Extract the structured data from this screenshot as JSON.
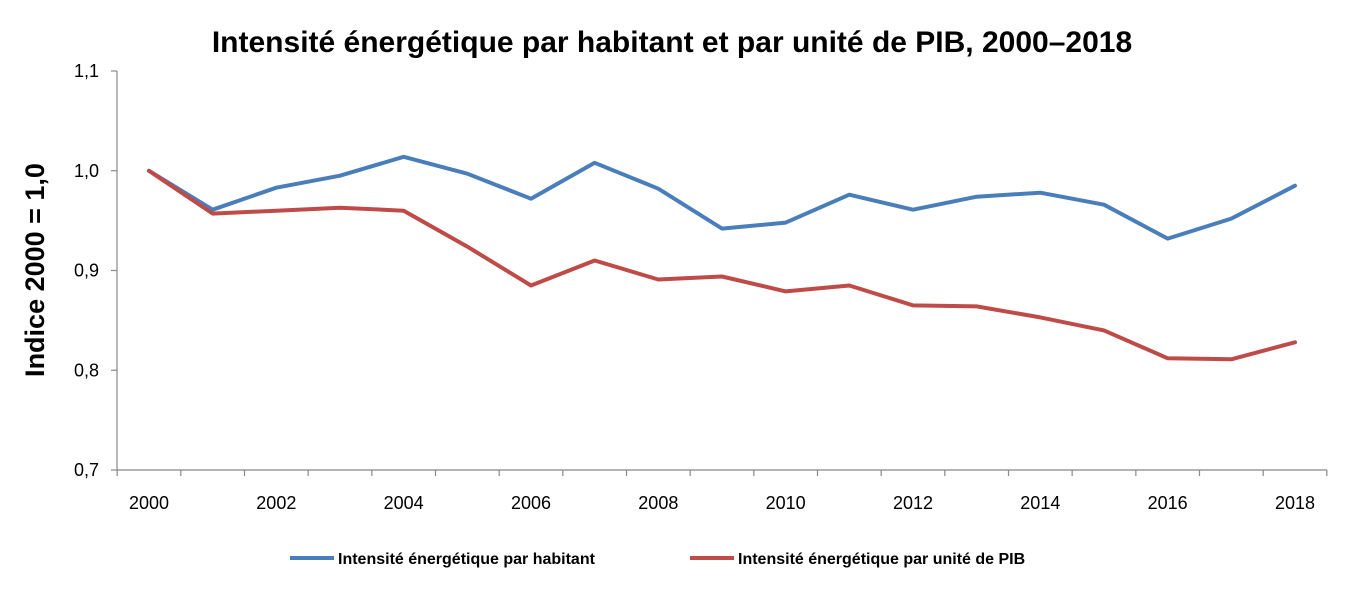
{
  "chart_data": {
    "type": "line",
    "title": "Intensité énergétique par habitant et par unité de PIB, 2000–2018",
    "ylabel": "Indice 2000 = 1,0",
    "xlabel": "",
    "x": [
      2000,
      2001,
      2002,
      2003,
      2004,
      2005,
      2006,
      2007,
      2008,
      2009,
      2010,
      2011,
      2012,
      2013,
      2014,
      2015,
      2016,
      2017,
      2018
    ],
    "x_tick_labels": [
      "2000",
      "2002",
      "2004",
      "2006",
      "2008",
      "2010",
      "2012",
      "2014",
      "2016",
      "2018"
    ],
    "x_tick_values": [
      2000,
      2002,
      2004,
      2006,
      2008,
      2010,
      2012,
      2014,
      2016,
      2018
    ],
    "ylim": [
      0.7,
      1.1
    ],
    "y_ticks": [
      0.7,
      0.8,
      0.9,
      1.0,
      1.1
    ],
    "y_tick_labels": [
      "0,7",
      "0,8",
      "0,9",
      "1,0",
      "1,1"
    ],
    "grid": false,
    "legend_position": "bottom",
    "series": [
      {
        "name": "Intensité énergétique par habitant",
        "color": "#4a7ebb",
        "values": [
          1.0,
          0.961,
          0.983,
          0.995,
          1.014,
          0.997,
          0.972,
          1.008,
          0.982,
          0.942,
          0.948,
          0.976,
          0.961,
          0.974,
          0.978,
          0.966,
          0.932,
          0.952,
          0.985
        ]
      },
      {
        "name": "Intensité énergétique par unité de PIB",
        "color": "#be4b48",
        "values": [
          1.0,
          0.957,
          0.96,
          0.963,
          0.96,
          0.924,
          0.885,
          0.91,
          0.891,
          0.894,
          0.879,
          0.885,
          0.865,
          0.864,
          0.853,
          0.84,
          0.812,
          0.811,
          0.828
        ]
      }
    ]
  }
}
